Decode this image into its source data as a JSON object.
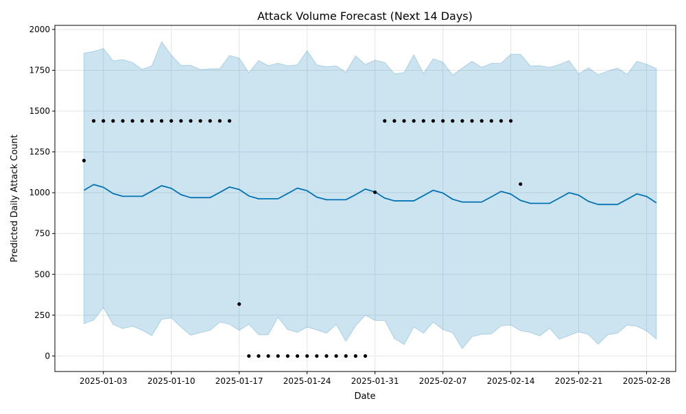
{
  "chart_data": {
    "type": "line",
    "title": "Attack Volume Forecast (Next 14 Days)",
    "xlabel": "Date",
    "ylabel": "Predicted Daily Attack Count",
    "x_start": "2025-01-01",
    "xlim": [
      "2024-12-29",
      "2025-03-03"
    ],
    "ylim": [
      -95,
      2025
    ],
    "x_ticks": [
      {
        "date": "2025-01-03",
        "label": "2025-01-03"
      },
      {
        "date": "2025-01-10",
        "label": "2025-01-10"
      },
      {
        "date": "2025-01-17",
        "label": "2025-01-17"
      },
      {
        "date": "2025-01-24",
        "label": "2025-01-24"
      },
      {
        "date": "2025-01-31",
        "label": "2025-01-31"
      },
      {
        "date": "2025-02-07",
        "label": "2025-02-07"
      },
      {
        "date": "2025-02-14",
        "label": "2025-02-14"
      },
      {
        "date": "2025-02-21",
        "label": "2025-02-21"
      },
      {
        "date": "2025-02-28",
        "label": "2025-02-28"
      }
    ],
    "y_ticks": [
      {
        "value": 0,
        "label": "0"
      },
      {
        "value": 250,
        "label": "250"
      },
      {
        "value": 500,
        "label": "500"
      },
      {
        "value": 750,
        "label": "750"
      },
      {
        "value": 1000,
        "label": "1000"
      },
      {
        "value": 1250,
        "label": "1250"
      },
      {
        "value": 1500,
        "label": "1500"
      },
      {
        "value": 1750,
        "label": "1750"
      },
      {
        "value": 2000,
        "label": "2000"
      }
    ],
    "grid": true,
    "colors": {
      "forecast_line": "#0072B2",
      "band_fill": "#0072B2",
      "band_opacity": 0.2,
      "actual_points": "#000000",
      "grid": "#e5e5e5"
    },
    "series": [
      {
        "kind": "forecast_line",
        "values": [
          1015,
          1050,
          1033,
          995,
          978,
          978,
          978,
          1010,
          1043,
          1027,
          988,
          970,
          970,
          970,
          1002,
          1035,
          1020,
          980,
          963,
          963,
          963,
          995,
          1028,
          1012,
          973,
          957,
          957,
          957,
          988,
          1022,
          1005,
          967,
          950,
          950,
          950,
          982,
          1015,
          998,
          960,
          943,
          943,
          943,
          975,
          1008,
          992,
          953,
          935,
          935,
          935,
          967,
          1000,
          985,
          947,
          928,
          928,
          928,
          960,
          993,
          977,
          938
        ]
      },
      {
        "kind": "uncertainty_band",
        "upper": [
          1855,
          1865,
          1883,
          1808,
          1815,
          1798,
          1755,
          1778,
          1925,
          1843,
          1780,
          1780,
          1755,
          1758,
          1760,
          1840,
          1825,
          1735,
          1810,
          1778,
          1793,
          1777,
          1783,
          1870,
          1782,
          1772,
          1777,
          1738,
          1838,
          1785,
          1812,
          1798,
          1728,
          1735,
          1845,
          1730,
          1820,
          1800,
          1720,
          1763,
          1805,
          1768,
          1792,
          1793,
          1848,
          1848,
          1777,
          1778,
          1768,
          1785,
          1810,
          1728,
          1765,
          1722,
          1745,
          1763,
          1725,
          1805,
          1787,
          1760
        ],
        "lower": [
          198,
          220,
          297,
          193,
          168,
          183,
          158,
          125,
          225,
          233,
          177,
          127,
          143,
          157,
          208,
          195,
          157,
          195,
          130,
          130,
          237,
          162,
          145,
          177,
          160,
          140,
          193,
          90,
          185,
          250,
          218,
          218,
          108,
          70,
          178,
          140,
          208,
          162,
          142,
          45,
          118,
          133,
          135,
          185,
          190,
          155,
          145,
          123,
          170,
          103,
          125,
          148,
          132,
          72,
          130,
          140,
          190,
          182,
          153,
          105
        ]
      },
      {
        "kind": "actual_points",
        "points": [
          {
            "x": "2025-01-01",
            "y": 1197
          },
          {
            "x": "2025-01-02",
            "y": 1440
          },
          {
            "x": "2025-01-03",
            "y": 1440
          },
          {
            "x": "2025-01-04",
            "y": 1440
          },
          {
            "x": "2025-01-05",
            "y": 1440
          },
          {
            "x": "2025-01-06",
            "y": 1440
          },
          {
            "x": "2025-01-07",
            "y": 1440
          },
          {
            "x": "2025-01-08",
            "y": 1440
          },
          {
            "x": "2025-01-09",
            "y": 1440
          },
          {
            "x": "2025-01-10",
            "y": 1440
          },
          {
            "x": "2025-01-11",
            "y": 1440
          },
          {
            "x": "2025-01-12",
            "y": 1440
          },
          {
            "x": "2025-01-13",
            "y": 1440
          },
          {
            "x": "2025-01-14",
            "y": 1440
          },
          {
            "x": "2025-01-15",
            "y": 1440
          },
          {
            "x": "2025-01-16",
            "y": 1440
          },
          {
            "x": "2025-01-17",
            "y": 318
          },
          {
            "x": "2025-01-18",
            "y": 0
          },
          {
            "x": "2025-01-19",
            "y": 0
          },
          {
            "x": "2025-01-20",
            "y": 0
          },
          {
            "x": "2025-01-21",
            "y": 0
          },
          {
            "x": "2025-01-22",
            "y": 0
          },
          {
            "x": "2025-01-23",
            "y": 0
          },
          {
            "x": "2025-01-24",
            "y": 0
          },
          {
            "x": "2025-01-25",
            "y": 0
          },
          {
            "x": "2025-01-26",
            "y": 0
          },
          {
            "x": "2025-01-27",
            "y": 0
          },
          {
            "x": "2025-01-28",
            "y": 0
          },
          {
            "x": "2025-01-29",
            "y": 0
          },
          {
            "x": "2025-01-30",
            "y": 0
          },
          {
            "x": "2025-01-31",
            "y": 1003
          },
          {
            "x": "2025-02-01",
            "y": 1440
          },
          {
            "x": "2025-02-02",
            "y": 1440
          },
          {
            "x": "2025-02-03",
            "y": 1440
          },
          {
            "x": "2025-02-04",
            "y": 1440
          },
          {
            "x": "2025-02-05",
            "y": 1440
          },
          {
            "x": "2025-02-06",
            "y": 1440
          },
          {
            "x": "2025-02-07",
            "y": 1440
          },
          {
            "x": "2025-02-08",
            "y": 1440
          },
          {
            "x": "2025-02-09",
            "y": 1440
          },
          {
            "x": "2025-02-10",
            "y": 1440
          },
          {
            "x": "2025-02-11",
            "y": 1440
          },
          {
            "x": "2025-02-12",
            "y": 1440
          },
          {
            "x": "2025-02-13",
            "y": 1440
          },
          {
            "x": "2025-02-14",
            "y": 1440
          },
          {
            "x": "2025-02-15",
            "y": 1053
          }
        ]
      }
    ]
  }
}
